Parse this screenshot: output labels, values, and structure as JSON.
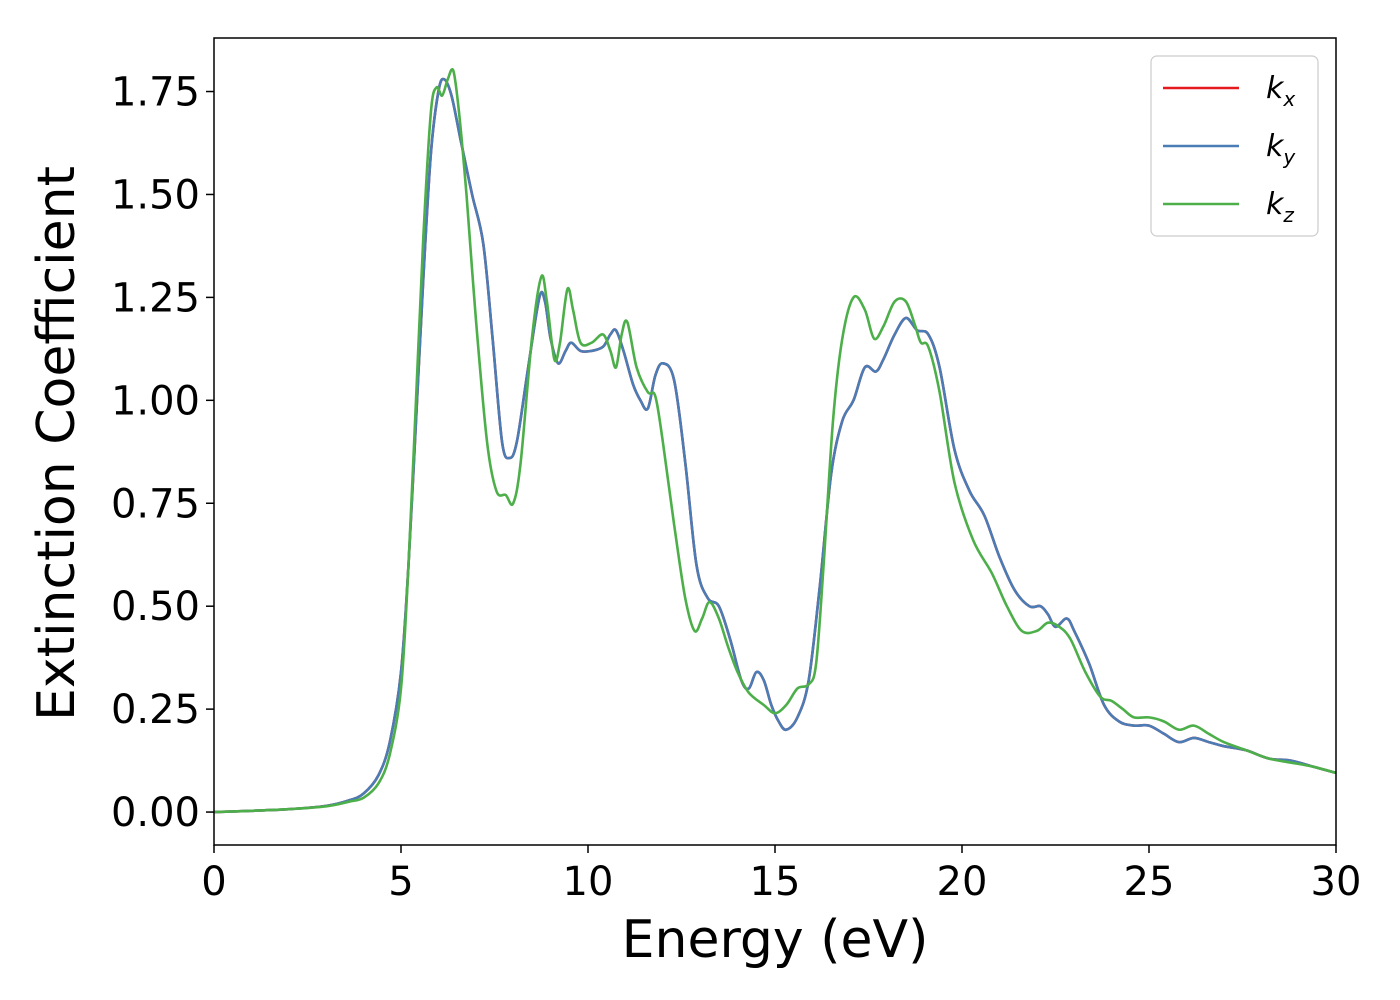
{
  "chart_data": {
    "type": "line",
    "title": "",
    "xlabel": "Energy (eV)",
    "ylabel": "Extinction Coefficient",
    "xlim": [
      0,
      30
    ],
    "ylim": [
      -0.08,
      1.88
    ],
    "xticks": [
      0,
      5,
      10,
      15,
      20,
      25,
      30
    ],
    "xtick_labels": [
      "0",
      "5",
      "10",
      "15",
      "20",
      "25",
      "30"
    ],
    "yticks": [
      0,
      0.25,
      0.5,
      0.75,
      1.0,
      1.25,
      1.5,
      1.75
    ],
    "ytick_labels": [
      "0.00",
      "0.25",
      "0.50",
      "0.75",
      "1.00",
      "1.25",
      "1.50",
      "1.75"
    ],
    "grid": false,
    "legend": {
      "position": "top-right"
    },
    "series": [
      {
        "name_base": "k",
        "name_sub": "x",
        "color": "#e41a1c",
        "points": [
          [
            0,
            0
          ],
          [
            1,
            0.003
          ],
          [
            2,
            0.007
          ],
          [
            3,
            0.015
          ],
          [
            3.6,
            0.028
          ],
          [
            4.0,
            0.045
          ],
          [
            4.4,
            0.09
          ],
          [
            4.7,
            0.17
          ],
          [
            5.0,
            0.34
          ],
          [
            5.2,
            0.6
          ],
          [
            5.4,
            0.95
          ],
          [
            5.6,
            1.3
          ],
          [
            5.8,
            1.6
          ],
          [
            6.0,
            1.75
          ],
          [
            6.15,
            1.78
          ],
          [
            6.35,
            1.74
          ],
          [
            6.6,
            1.63
          ],
          [
            6.9,
            1.5
          ],
          [
            7.2,
            1.38
          ],
          [
            7.45,
            1.15
          ],
          [
            7.7,
            0.9
          ],
          [
            7.9,
            0.86
          ],
          [
            8.1,
            0.9
          ],
          [
            8.4,
            1.08
          ],
          [
            8.7,
            1.25
          ],
          [
            8.85,
            1.24
          ],
          [
            9.0,
            1.15
          ],
          [
            9.2,
            1.09
          ],
          [
            9.4,
            1.12
          ],
          [
            9.55,
            1.14
          ],
          [
            9.8,
            1.12
          ],
          [
            10.1,
            1.12
          ],
          [
            10.4,
            1.13
          ],
          [
            10.6,
            1.16
          ],
          [
            10.75,
            1.17
          ],
          [
            10.95,
            1.12
          ],
          [
            11.2,
            1.04
          ],
          [
            11.4,
            1.0
          ],
          [
            11.6,
            0.98
          ],
          [
            11.8,
            1.06
          ],
          [
            12.0,
            1.09
          ],
          [
            12.3,
            1.05
          ],
          [
            12.6,
            0.85
          ],
          [
            12.9,
            0.6
          ],
          [
            13.2,
            0.52
          ],
          [
            13.5,
            0.5
          ],
          [
            13.8,
            0.42
          ],
          [
            14.1,
            0.32
          ],
          [
            14.3,
            0.3
          ],
          [
            14.5,
            0.34
          ],
          [
            14.7,
            0.32
          ],
          [
            14.9,
            0.26
          ],
          [
            15.1,
            0.22
          ],
          [
            15.3,
            0.2
          ],
          [
            15.6,
            0.23
          ],
          [
            15.9,
            0.32
          ],
          [
            16.2,
            0.55
          ],
          [
            16.5,
            0.82
          ],
          [
            16.8,
            0.95
          ],
          [
            17.1,
            1.0
          ],
          [
            17.4,
            1.08
          ],
          [
            17.7,
            1.07
          ],
          [
            17.9,
            1.1
          ],
          [
            18.2,
            1.16
          ],
          [
            18.5,
            1.2
          ],
          [
            18.8,
            1.17
          ],
          [
            19.1,
            1.16
          ],
          [
            19.4,
            1.08
          ],
          [
            19.8,
            0.88
          ],
          [
            20.2,
            0.78
          ],
          [
            20.6,
            0.72
          ],
          [
            21.0,
            0.62
          ],
          [
            21.4,
            0.54
          ],
          [
            21.8,
            0.5
          ],
          [
            22.1,
            0.5
          ],
          [
            22.3,
            0.48
          ],
          [
            22.5,
            0.45
          ],
          [
            22.8,
            0.47
          ],
          [
            23.0,
            0.44
          ],
          [
            23.4,
            0.36
          ],
          [
            23.8,
            0.26
          ],
          [
            24.2,
            0.22
          ],
          [
            24.6,
            0.21
          ],
          [
            25.0,
            0.21
          ],
          [
            25.4,
            0.19
          ],
          [
            25.8,
            0.17
          ],
          [
            26.2,
            0.18
          ],
          [
            26.6,
            0.17
          ],
          [
            27.0,
            0.16
          ],
          [
            27.6,
            0.15
          ],
          [
            28.2,
            0.13
          ],
          [
            28.8,
            0.125
          ],
          [
            29.4,
            0.11
          ],
          [
            30,
            0.095
          ]
        ]
      },
      {
        "name_base": "k",
        "name_sub": "y",
        "color": "#4a7cb5",
        "points": [
          [
            0,
            0
          ],
          [
            1,
            0.003
          ],
          [
            2,
            0.007
          ],
          [
            3,
            0.015
          ],
          [
            3.6,
            0.028
          ],
          [
            4.0,
            0.045
          ],
          [
            4.4,
            0.09
          ],
          [
            4.7,
            0.17
          ],
          [
            5.0,
            0.34
          ],
          [
            5.2,
            0.6
          ],
          [
            5.4,
            0.95
          ],
          [
            5.6,
            1.3
          ],
          [
            5.8,
            1.6
          ],
          [
            6.0,
            1.75
          ],
          [
            6.15,
            1.78
          ],
          [
            6.35,
            1.74
          ],
          [
            6.6,
            1.63
          ],
          [
            6.9,
            1.5
          ],
          [
            7.2,
            1.38
          ],
          [
            7.45,
            1.15
          ],
          [
            7.7,
            0.9
          ],
          [
            7.9,
            0.86
          ],
          [
            8.1,
            0.9
          ],
          [
            8.4,
            1.08
          ],
          [
            8.7,
            1.25
          ],
          [
            8.85,
            1.24
          ],
          [
            9.0,
            1.15
          ],
          [
            9.2,
            1.09
          ],
          [
            9.4,
            1.12
          ],
          [
            9.55,
            1.14
          ],
          [
            9.8,
            1.12
          ],
          [
            10.1,
            1.12
          ],
          [
            10.4,
            1.13
          ],
          [
            10.6,
            1.16
          ],
          [
            10.75,
            1.17
          ],
          [
            10.95,
            1.12
          ],
          [
            11.2,
            1.04
          ],
          [
            11.4,
            1.0
          ],
          [
            11.6,
            0.98
          ],
          [
            11.8,
            1.06
          ],
          [
            12.0,
            1.09
          ],
          [
            12.3,
            1.05
          ],
          [
            12.6,
            0.85
          ],
          [
            12.9,
            0.6
          ],
          [
            13.2,
            0.52
          ],
          [
            13.5,
            0.5
          ],
          [
            13.8,
            0.42
          ],
          [
            14.1,
            0.32
          ],
          [
            14.3,
            0.3
          ],
          [
            14.5,
            0.34
          ],
          [
            14.7,
            0.32
          ],
          [
            14.9,
            0.26
          ],
          [
            15.1,
            0.22
          ],
          [
            15.3,
            0.2
          ],
          [
            15.6,
            0.23
          ],
          [
            15.9,
            0.32
          ],
          [
            16.2,
            0.55
          ],
          [
            16.5,
            0.82
          ],
          [
            16.8,
            0.95
          ],
          [
            17.1,
            1.0
          ],
          [
            17.4,
            1.08
          ],
          [
            17.7,
            1.07
          ],
          [
            17.9,
            1.1
          ],
          [
            18.2,
            1.16
          ],
          [
            18.5,
            1.2
          ],
          [
            18.8,
            1.17
          ],
          [
            19.1,
            1.16
          ],
          [
            19.4,
            1.08
          ],
          [
            19.8,
            0.88
          ],
          [
            20.2,
            0.78
          ],
          [
            20.6,
            0.72
          ],
          [
            21.0,
            0.62
          ],
          [
            21.4,
            0.54
          ],
          [
            21.8,
            0.5
          ],
          [
            22.1,
            0.5
          ],
          [
            22.3,
            0.48
          ],
          [
            22.5,
            0.45
          ],
          [
            22.8,
            0.47
          ],
          [
            23.0,
            0.44
          ],
          [
            23.4,
            0.36
          ],
          [
            23.8,
            0.26
          ],
          [
            24.2,
            0.22
          ],
          [
            24.6,
            0.21
          ],
          [
            25.0,
            0.21
          ],
          [
            25.4,
            0.19
          ],
          [
            25.8,
            0.17
          ],
          [
            26.2,
            0.18
          ],
          [
            26.6,
            0.17
          ],
          [
            27.0,
            0.16
          ],
          [
            27.6,
            0.15
          ],
          [
            28.2,
            0.13
          ],
          [
            28.8,
            0.125
          ],
          [
            29.4,
            0.11
          ],
          [
            30,
            0.095
          ]
        ]
      },
      {
        "name_base": "k",
        "name_sub": "z",
        "color": "#4daf4a",
        "points": [
          [
            0,
            0
          ],
          [
            1,
            0.003
          ],
          [
            2,
            0.007
          ],
          [
            3,
            0.014
          ],
          [
            3.6,
            0.025
          ],
          [
            4.0,
            0.035
          ],
          [
            4.4,
            0.07
          ],
          [
            4.7,
            0.14
          ],
          [
            5.0,
            0.3
          ],
          [
            5.2,
            0.6
          ],
          [
            5.4,
            1.0
          ],
          [
            5.6,
            1.4
          ],
          [
            5.8,
            1.7
          ],
          [
            5.95,
            1.76
          ],
          [
            6.1,
            1.74
          ],
          [
            6.25,
            1.78
          ],
          [
            6.4,
            1.8
          ],
          [
            6.55,
            1.7
          ],
          [
            6.75,
            1.5
          ],
          [
            7.0,
            1.2
          ],
          [
            7.3,
            0.9
          ],
          [
            7.55,
            0.78
          ],
          [
            7.8,
            0.77
          ],
          [
            8.0,
            0.75
          ],
          [
            8.2,
            0.85
          ],
          [
            8.5,
            1.15
          ],
          [
            8.75,
            1.3
          ],
          [
            8.9,
            1.24
          ],
          [
            9.1,
            1.1
          ],
          [
            9.25,
            1.14
          ],
          [
            9.45,
            1.27
          ],
          [
            9.6,
            1.22
          ],
          [
            9.8,
            1.14
          ],
          [
            10.1,
            1.14
          ],
          [
            10.4,
            1.16
          ],
          [
            10.6,
            1.12
          ],
          [
            10.75,
            1.08
          ],
          [
            10.9,
            1.16
          ],
          [
            11.05,
            1.19
          ],
          [
            11.3,
            1.08
          ],
          [
            11.6,
            1.02
          ],
          [
            11.8,
            1.01
          ],
          [
            12.0,
            0.9
          ],
          [
            12.3,
            0.7
          ],
          [
            12.6,
            0.52
          ],
          [
            12.85,
            0.44
          ],
          [
            13.05,
            0.47
          ],
          [
            13.25,
            0.51
          ],
          [
            13.5,
            0.47
          ],
          [
            13.75,
            0.4
          ],
          [
            14.0,
            0.34
          ],
          [
            14.3,
            0.29
          ],
          [
            14.7,
            0.26
          ],
          [
            15.0,
            0.24
          ],
          [
            15.3,
            0.26
          ],
          [
            15.6,
            0.3
          ],
          [
            15.9,
            0.31
          ],
          [
            16.1,
            0.36
          ],
          [
            16.3,
            0.6
          ],
          [
            16.55,
            0.95
          ],
          [
            16.8,
            1.15
          ],
          [
            17.1,
            1.25
          ],
          [
            17.4,
            1.22
          ],
          [
            17.65,
            1.15
          ],
          [
            17.9,
            1.18
          ],
          [
            18.2,
            1.24
          ],
          [
            18.5,
            1.24
          ],
          [
            18.75,
            1.18
          ],
          [
            18.9,
            1.14
          ],
          [
            19.1,
            1.13
          ],
          [
            19.4,
            1.02
          ],
          [
            19.8,
            0.8
          ],
          [
            20.3,
            0.66
          ],
          [
            20.8,
            0.58
          ],
          [
            21.2,
            0.5
          ],
          [
            21.6,
            0.44
          ],
          [
            22.0,
            0.44
          ],
          [
            22.3,
            0.46
          ],
          [
            22.6,
            0.45
          ],
          [
            22.9,
            0.42
          ],
          [
            23.3,
            0.34
          ],
          [
            23.7,
            0.28
          ],
          [
            24.0,
            0.27
          ],
          [
            24.3,
            0.25
          ],
          [
            24.6,
            0.23
          ],
          [
            25.0,
            0.23
          ],
          [
            25.4,
            0.22
          ],
          [
            25.8,
            0.2
          ],
          [
            26.2,
            0.21
          ],
          [
            26.6,
            0.19
          ],
          [
            27.0,
            0.17
          ],
          [
            27.6,
            0.15
          ],
          [
            28.2,
            0.13
          ],
          [
            28.8,
            0.12
          ],
          [
            29.4,
            0.11
          ],
          [
            30,
            0.095
          ]
        ]
      }
    ]
  }
}
